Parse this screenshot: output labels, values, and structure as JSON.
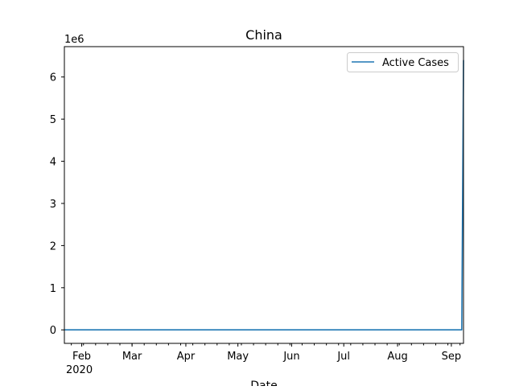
{
  "chart_data": {
    "type": "line",
    "title": "China",
    "xlabel": "Date",
    "ylabel": "",
    "y_offset_label": "1e6",
    "x_year_label": "2020",
    "x_range": [
      "2020-01-22",
      "2020-09-08"
    ],
    "ylim": [
      -0.32,
      6.72
    ],
    "grid": false,
    "legend_position": "upper right",
    "x_ticks": [
      {
        "date": "2020-02-01",
        "label": "Feb"
      },
      {
        "date": "2020-03-01",
        "label": "Mar"
      },
      {
        "date": "2020-04-01",
        "label": "Apr"
      },
      {
        "date": "2020-05-01",
        "label": "May"
      },
      {
        "date": "2020-06-01",
        "label": "Jun"
      },
      {
        "date": "2020-07-01",
        "label": "Jul"
      },
      {
        "date": "2020-08-01",
        "label": "Aug"
      },
      {
        "date": "2020-09-01",
        "label": "Sep"
      }
    ],
    "y_ticks": [
      0,
      1,
      2,
      3,
      4,
      5,
      6
    ],
    "series": [
      {
        "name": "Active Cases",
        "color": "#1f77b4",
        "points": [
          {
            "date": "2020-01-22",
            "value": 0
          },
          {
            "date": "2020-09-07",
            "value": 0
          },
          {
            "date": "2020-09-08",
            "value": 6.4
          }
        ]
      }
    ]
  }
}
